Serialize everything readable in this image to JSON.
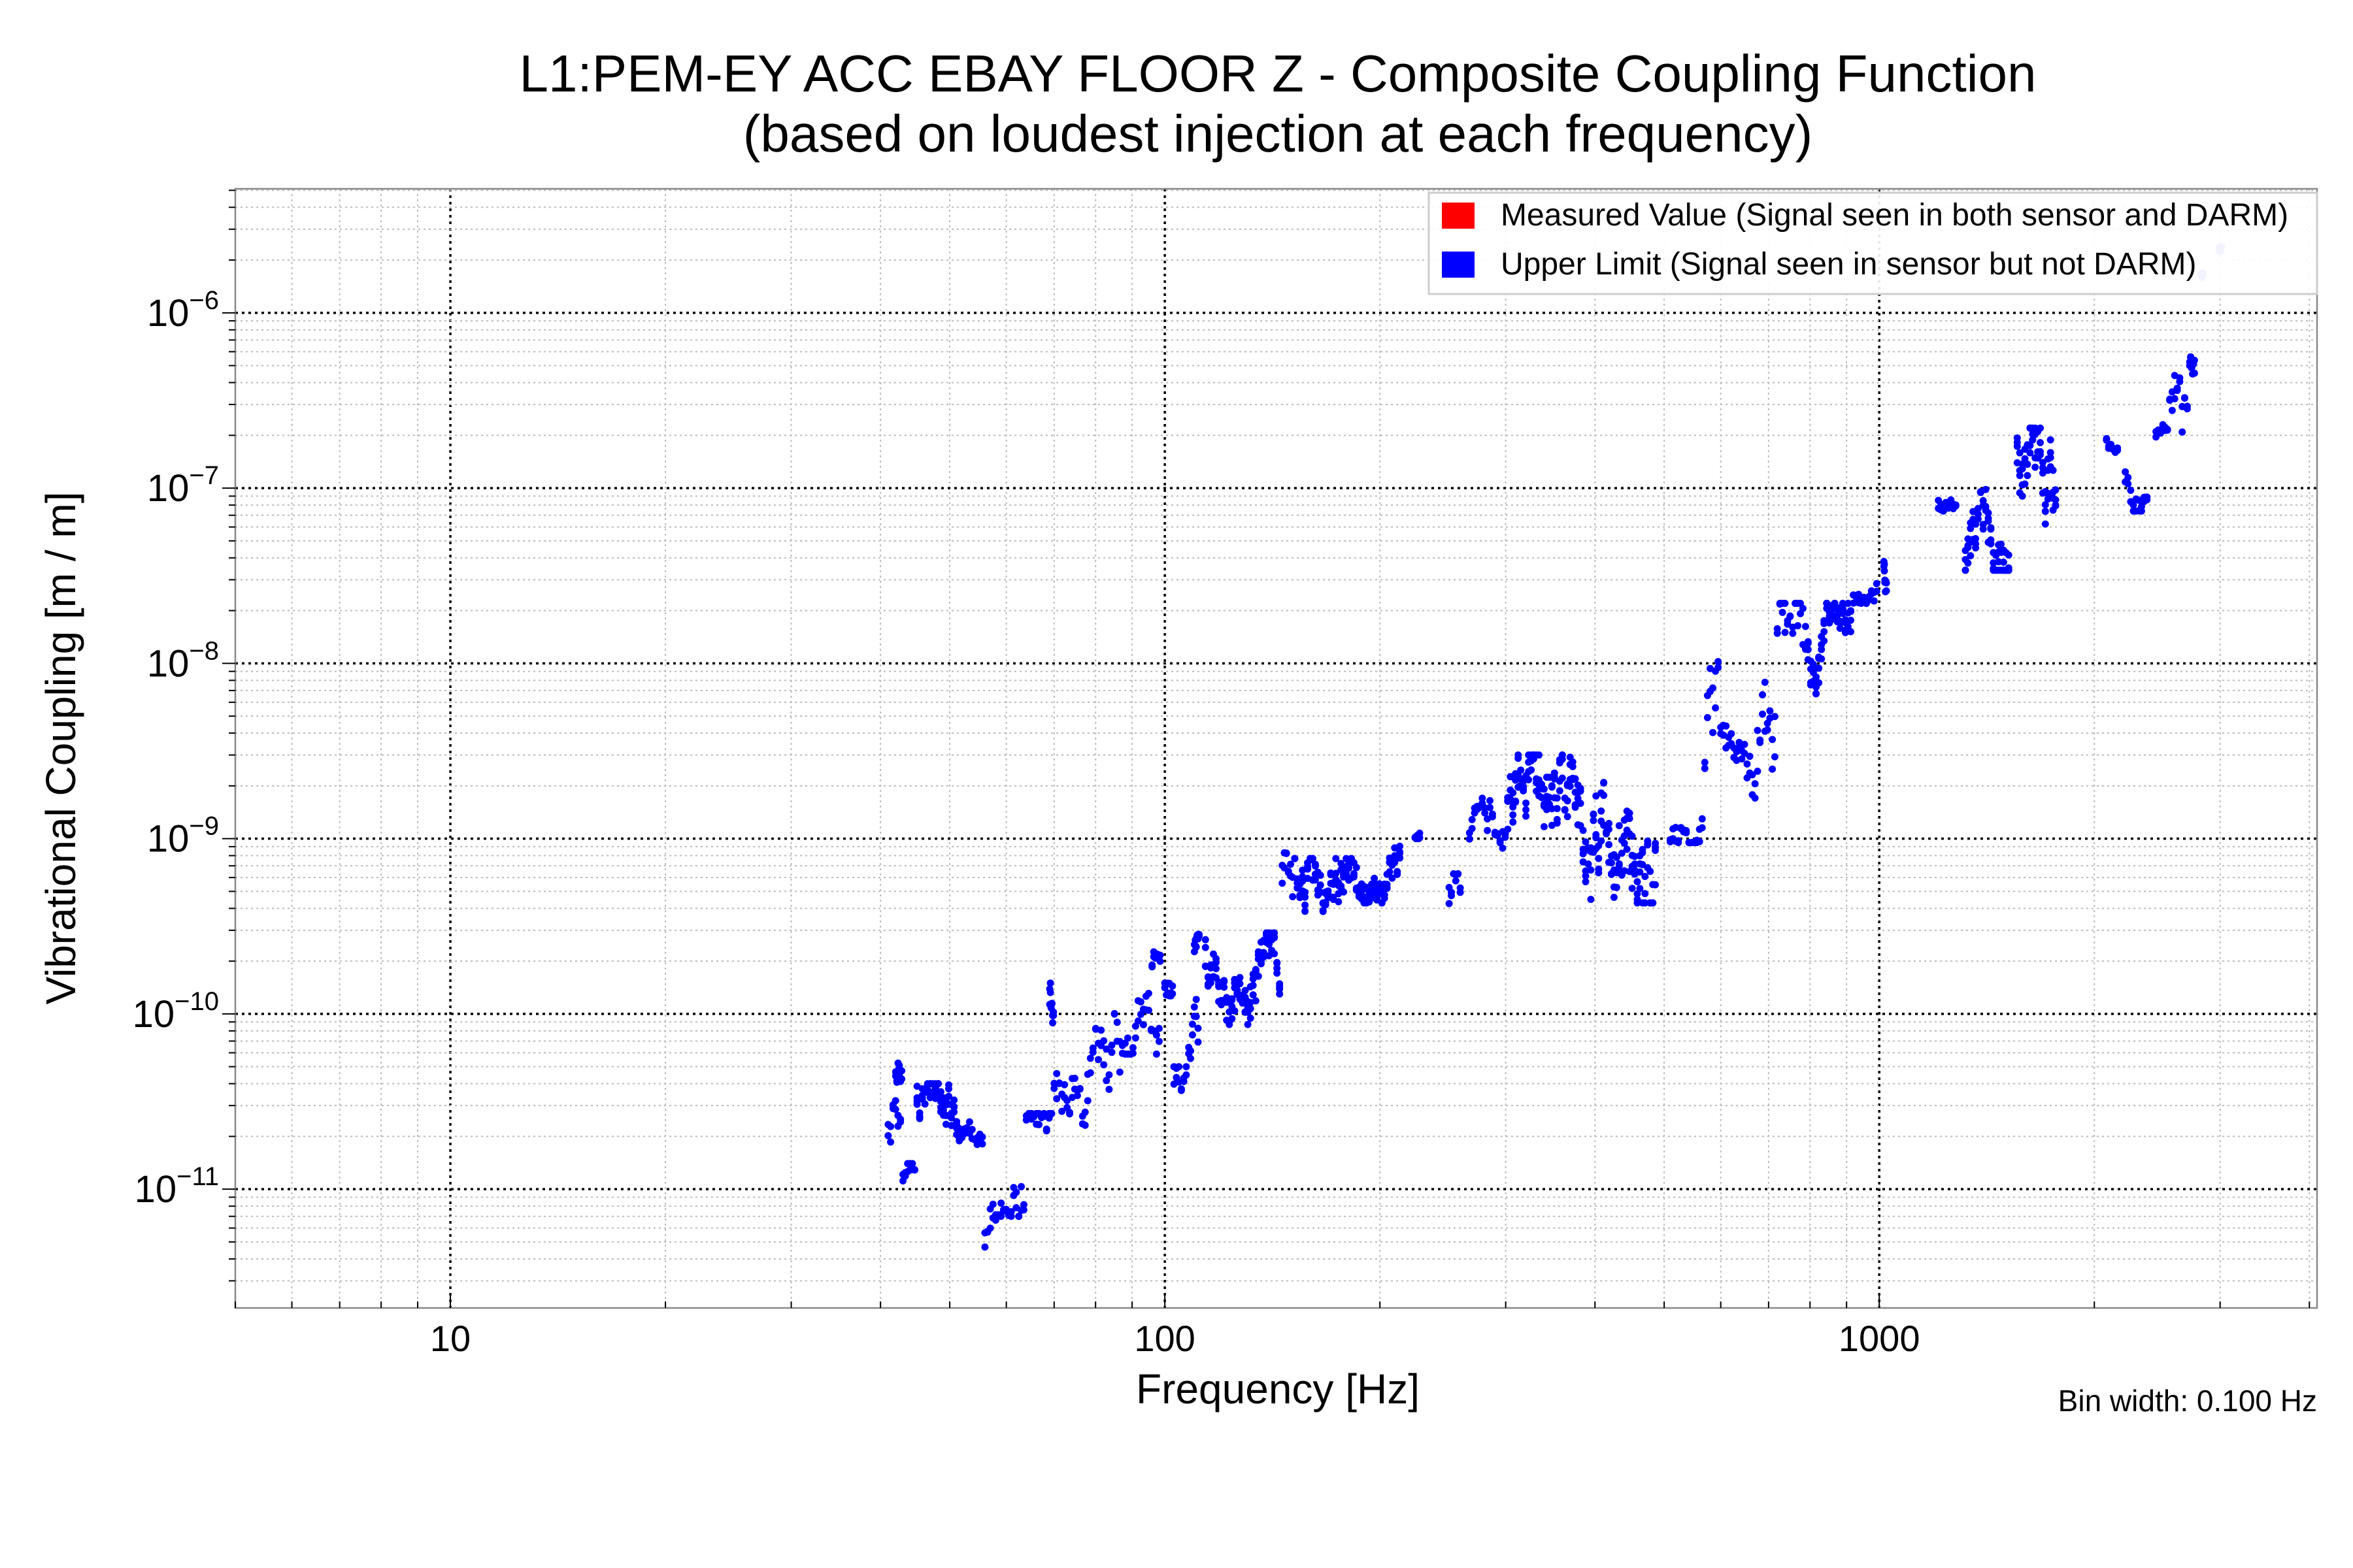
{
  "chart_data": {
    "type": "scatter",
    "title": "L1:PEM-EY ACC EBAY FLOOR Z - Composite Coupling Function",
    "subtitle": "(based on loudest injection at each frequency)",
    "xlabel": "Frequency [Hz]",
    "ylabel": "Vibrational Coupling [m / m]",
    "xscale": "log",
    "yscale": "log",
    "xlim": [
      5,
      4100
    ],
    "ylim": [
      2.1e-12,
      5.1e-06
    ],
    "x_ticks": [
      {
        "value": 10,
        "label": "10"
      },
      {
        "value": 100,
        "label": "100"
      },
      {
        "value": 1000,
        "label": "1000"
      }
    ],
    "y_ticks": [
      {
        "value": 1e-06,
        "base": "10",
        "exp": "−6"
      },
      {
        "value": 1e-07,
        "base": "10",
        "exp": "−7"
      },
      {
        "value": 1e-08,
        "base": "10",
        "exp": "−8"
      },
      {
        "value": 1e-09,
        "base": "10",
        "exp": "−9"
      },
      {
        "value": 1e-10,
        "base": "10",
        "exp": "−10"
      },
      {
        "value": 1e-11,
        "base": "10",
        "exp": "−11"
      }
    ],
    "grid": true,
    "legend": {
      "placement": "top-right",
      "entries": [
        {
          "label": "Measured Value (Signal seen in both sensor and DARM)",
          "color": "#ff0000"
        },
        {
          "label": "Upper Limit (Signal seen in sensor but not DARM)",
          "color": "#0000ff"
        }
      ]
    },
    "annotation": "Bin width: 0.100 Hz",
    "series": [
      {
        "name": "Measured Value",
        "color": "#ff0000",
        "clusters": []
      },
      {
        "name": "Upper Limit",
        "color": "#0000ff",
        "cluster_format": "[f_min_Hz, f_max_Hz, coupling_low, coupling_high]",
        "clusters": [
          [
            41,
            43,
            1e-11,
            3.2e-11
          ],
          [
            42,
            43,
            3e-11,
            5.5e-11
          ],
          [
            43,
            45,
            8e-12,
            1.4e-11
          ],
          [
            45,
            52,
            1.4e-11,
            4e-11
          ],
          [
            52,
            56,
            1.8e-11,
            3.2e-11
          ],
          [
            56,
            59,
            4.4e-12,
            1.2e-11
          ],
          [
            59,
            64,
            7e-12,
            1.8e-11
          ],
          [
            64,
            70,
            1.4e-11,
            2.7e-11
          ],
          [
            69,
            70,
            6e-11,
            1.5e-10
          ],
          [
            70,
            78,
            2.2e-11,
            8.6e-11
          ],
          [
            78,
            88,
            3.2e-11,
            1.3e-10
          ],
          [
            88,
            99,
            5.9e-11,
            1.9e-10
          ],
          [
            96,
            99,
            1.5e-10,
            2.3e-10
          ],
          [
            100,
            103,
            5e-11,
            1.5e-10
          ],
          [
            103,
            108,
            2.2e-11,
            5e-11
          ],
          [
            108,
            112,
            3.5e-11,
            1.6e-10
          ],
          [
            110,
            112,
            2e-10,
            3.6e-10
          ],
          [
            114,
            146,
            8.7e-11,
            2.9e-10
          ],
          [
            146,
            152,
            3e-10,
            8.6e-10
          ],
          [
            152,
            187,
            2.4e-10,
            7.7e-10
          ],
          [
            187,
            215,
            4.3e-10,
            1e-09
          ],
          [
            224,
            228,
            1e-09,
            1.3e-09
          ],
          [
            250,
            261,
            3.1e-10,
            6.3e-10
          ],
          [
            267,
            302,
            7.7e-10,
            1.7e-09
          ],
          [
            302,
            385,
            5e-10,
            3e-09
          ],
          [
            385,
            490,
            4.3e-10,
            4.2e-09
          ],
          [
            510,
            570,
            9.5e-10,
            1.7e-09
          ],
          [
            570,
            600,
            1.4e-09,
            1.2e-08
          ],
          [
            600,
            670,
            1.7e-09,
            4.6e-09
          ],
          [
            670,
            720,
            8.6e-10,
            8.4e-09
          ],
          [
            720,
            795,
            3e-09,
            2.2e-08
          ],
          [
            795,
            920,
            5.6e-09,
            2.2e-08
          ],
          [
            920,
            1000,
            2.2e-08,
            3.7e-08
          ],
          [
            1015,
            1025,
            2.5e-08,
            4.5e-08
          ],
          [
            1210,
            1290,
            7.4e-08,
            1.1e-07
          ],
          [
            1320,
            1530,
            3.4e-08,
            1.2e-07
          ],
          [
            1560,
            1780,
            3.7e-08,
            2.2e-07
          ],
          [
            2080,
            2170,
            1.6e-07,
            2e-07
          ],
          [
            2210,
            2390,
            7.4e-08,
            2e-07
          ],
          [
            2440,
            2550,
            1.6e-07,
            2.3e-07
          ],
          [
            2550,
            2720,
            1.6e-07,
            7.2e-07
          ],
          [
            2720,
            2770,
            4.4e-07,
            1.2e-06
          ]
        ]
      },
      {
        "name": "Upper Limit (faded)",
        "color": "#8080ff",
        "clusters": [
          [
            2820,
            2840,
            1.4e-06,
            1.7e-06
          ],
          [
            2990,
            3010,
            2.2e-06,
            2.7e-06
          ]
        ]
      }
    ]
  }
}
